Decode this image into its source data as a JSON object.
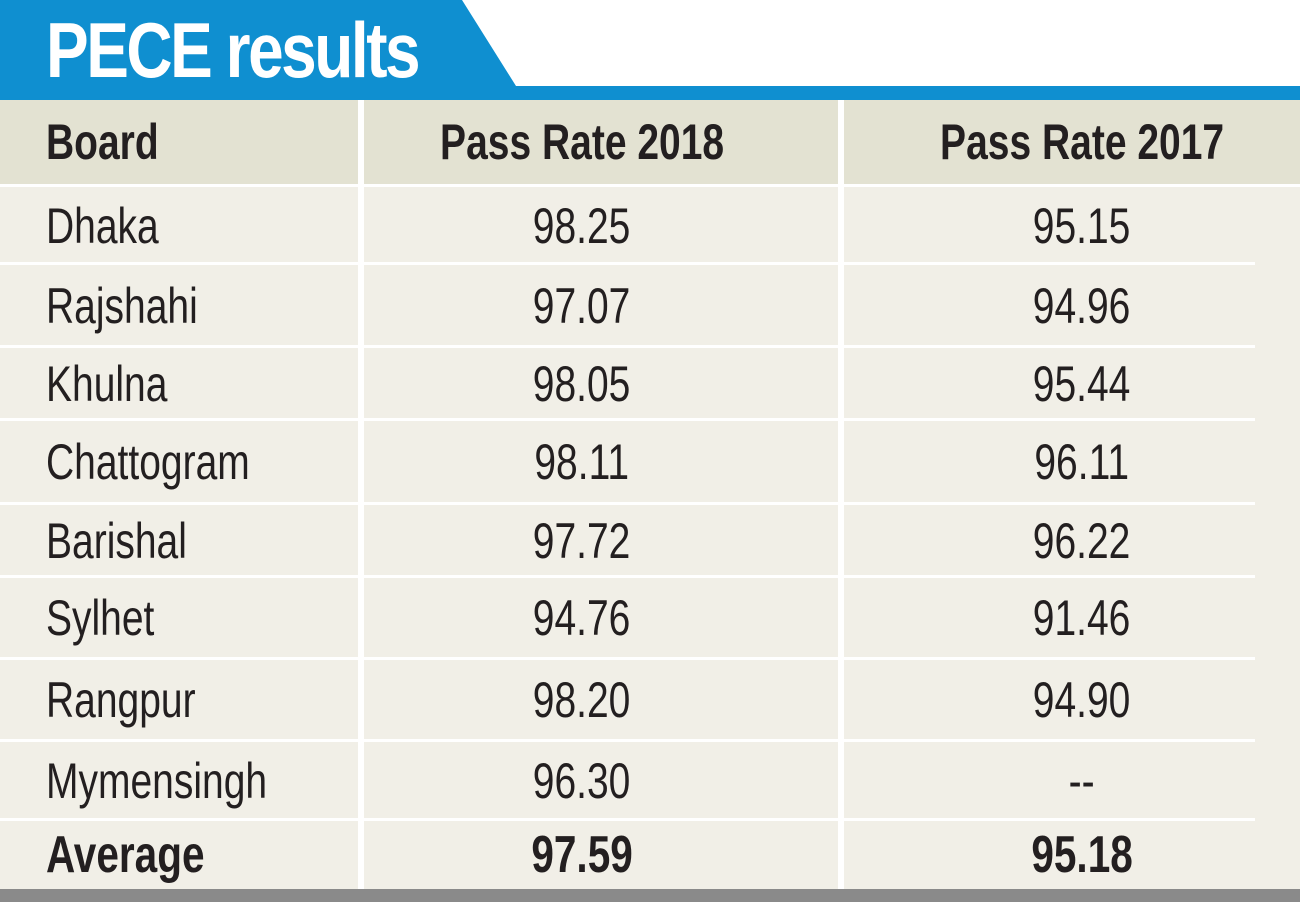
{
  "title": "PECE results",
  "colors": {
    "title_blue": "#0f8fd0",
    "header_bg": "#e3e2d2",
    "body_bg": "#f1efe7",
    "text": "#231f20",
    "bottom_bar": "#8a8a8a"
  },
  "table": {
    "headers": [
      "Board",
      "Pass Rate 2018",
      "Pass Rate 2017"
    ],
    "rows": [
      {
        "board": "Dhaka",
        "rate_2018": "98.25",
        "rate_2017": "95.15"
      },
      {
        "board": "Rajshahi",
        "rate_2018": "97.07",
        "rate_2017": "94.96"
      },
      {
        "board": "Khulna",
        "rate_2018": "98.05",
        "rate_2017": "95.44"
      },
      {
        "board": "Chattogram",
        "rate_2018": "98.11",
        "rate_2017": "96.11"
      },
      {
        "board": "Barishal",
        "rate_2018": "97.72",
        "rate_2017": "96.22"
      },
      {
        "board": "Sylhet",
        "rate_2018": "94.76",
        "rate_2017": "91.46"
      },
      {
        "board": "Rangpur",
        "rate_2018": "98.20",
        "rate_2017": "94.90"
      },
      {
        "board": "Mymensingh",
        "rate_2018": "96.30",
        "rate_2017": "--"
      }
    ],
    "average": {
      "board": "Average",
      "rate_2018": "97.59",
      "rate_2017": "95.18"
    }
  }
}
